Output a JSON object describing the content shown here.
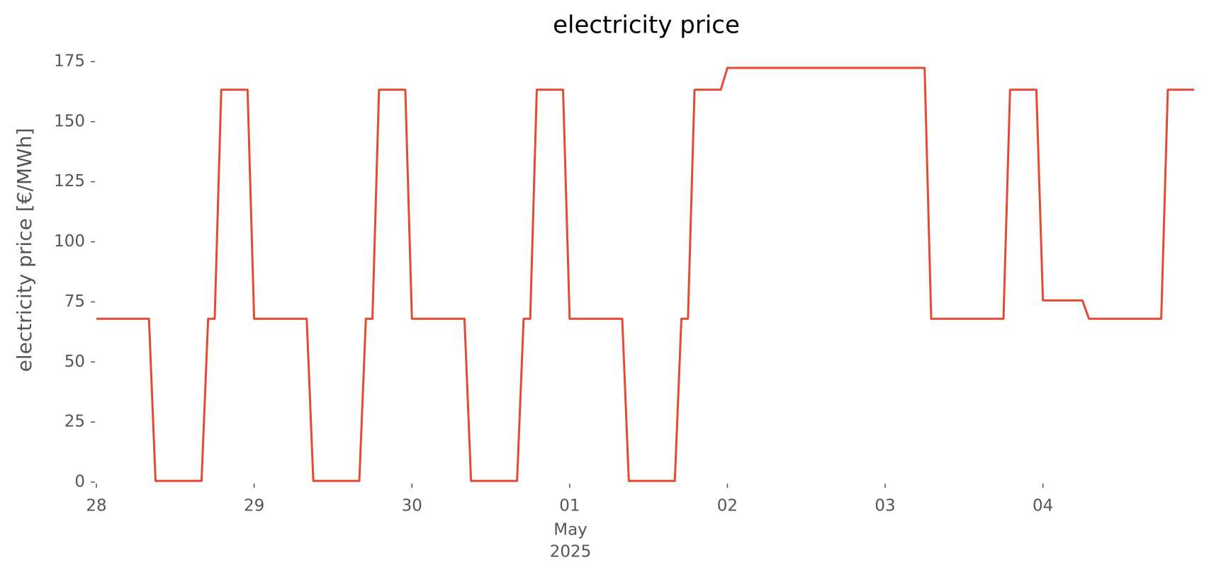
{
  "chart_data": {
    "type": "line",
    "title": "electricity price",
    "ylabel": "electricity price [€/MWh]",
    "x_sublabels": [
      "May",
      "2025"
    ],
    "x": [
      0,
      1,
      2,
      3,
      4,
      5,
      6,
      7,
      8,
      9,
      10,
      11,
      12,
      13,
      14,
      15,
      16,
      17,
      18,
      19,
      20,
      21,
      22,
      23,
      24,
      25,
      26,
      27,
      28,
      29,
      30,
      31,
      32,
      33,
      34,
      35,
      36,
      37,
      38,
      39,
      40,
      41,
      42,
      43,
      44,
      45,
      46,
      47,
      48,
      49,
      50,
      51,
      52,
      53,
      54,
      55,
      56,
      57,
      58,
      59,
      60,
      61,
      62,
      63,
      64,
      65,
      66,
      67,
      68,
      69,
      70,
      71,
      72,
      73,
      74,
      75,
      76,
      77,
      78,
      79,
      80,
      81,
      82,
      83,
      84,
      85,
      86,
      87,
      88,
      89,
      90,
      91,
      92,
      93,
      94,
      95,
      96,
      97,
      98,
      99,
      100,
      101,
      102,
      103,
      104,
      105,
      106,
      107,
      108,
      109,
      110,
      111,
      112,
      113,
      114,
      115,
      116,
      117,
      118,
      119,
      120,
      121,
      122,
      123,
      124,
      125,
      126,
      127,
      128,
      129,
      130,
      131,
      132,
      133,
      134,
      135,
      136,
      137,
      138,
      139,
      140,
      141,
      142,
      143,
      144,
      145,
      146,
      147,
      148,
      149,
      150,
      151,
      152,
      153,
      154,
      155,
      156,
      157,
      158,
      159,
      160,
      161,
      162,
      163,
      164,
      165,
      166,
      167
    ],
    "values": [
      68,
      68,
      68,
      68,
      68,
      68,
      68,
      68,
      68,
      0.5,
      0.5,
      0.5,
      0.5,
      0.5,
      0.5,
      0.5,
      0.5,
      68,
      68,
      163.3,
      163.3,
      163.3,
      163.3,
      163.3,
      68,
      68,
      68,
      68,
      68,
      68,
      68,
      68,
      68,
      0.5,
      0.5,
      0.5,
      0.5,
      0.5,
      0.5,
      0.5,
      0.5,
      68,
      68,
      163.3,
      163.3,
      163.3,
      163.3,
      163.3,
      68,
      68,
      68,
      68,
      68,
      68,
      68,
      68,
      68,
      0.5,
      0.5,
      0.5,
      0.5,
      0.5,
      0.5,
      0.5,
      0.5,
      68,
      68,
      163.3,
      163.3,
      163.3,
      163.3,
      163.3,
      68,
      68,
      68,
      68,
      68,
      68,
      68,
      68,
      68,
      0.5,
      0.5,
      0.5,
      0.5,
      0.5,
      0.5,
      0.5,
      0.5,
      68,
      68,
      163.3,
      163.3,
      163.3,
      163.3,
      163.3,
      172.4,
      172.4,
      172.4,
      172.4,
      172.4,
      172.4,
      172.4,
      172.4,
      172.4,
      172.4,
      172.4,
      172.4,
      172.4,
      172.4,
      172.4,
      172.4,
      172.4,
      172.4,
      172.4,
      172.4,
      172.4,
      172.4,
      172.4,
      172.4,
      172.4,
      172.4,
      172.4,
      172.4,
      172.4,
      172.4,
      172.4,
      68,
      68,
      68,
      68,
      68,
      68,
      68,
      68,
      68,
      68,
      68,
      68,
      163.3,
      163.3,
      163.3,
      163.3,
      163.3,
      75.6,
      75.6,
      75.6,
      75.6,
      75.6,
      75.6,
      75.6,
      68,
      68,
      68,
      68,
      68,
      68,
      68,
      68,
      68,
      68,
      68,
      68,
      163.3,
      163.3,
      163.3,
      163.3,
      163.3
    ],
    "color": "#e24a33",
    "xlim": [
      0,
      167
    ],
    "xticks": [
      {
        "value": 0,
        "label": "28"
      },
      {
        "value": 24,
        "label": "29"
      },
      {
        "value": 48,
        "label": "30"
      },
      {
        "value": 72,
        "label": "01"
      },
      {
        "value": 96,
        "label": "02"
      },
      {
        "value": 120,
        "label": "03"
      },
      {
        "value": 144,
        "label": "04"
      }
    ],
    "ylim": [
      0,
      175
    ],
    "yticks": [
      0,
      25,
      50,
      75,
      100,
      125,
      150,
      175
    ],
    "grid": false
  }
}
